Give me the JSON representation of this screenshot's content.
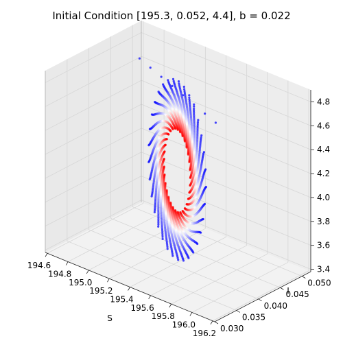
{
  "chart_data": {
    "type": "scatter",
    "projection": "3d",
    "title": "Initial Condition [195.3, 0.052, 4.4], b = 0.022",
    "xlabel": "S",
    "ylabel": "I",
    "zlabel": "",
    "xlim": [
      194.58,
      196.22
    ],
    "ylim": [
      0.03,
      0.052
    ],
    "zlim": [
      3.38,
      4.9
    ],
    "xticks": [
      "194.6",
      "194.8",
      "195.0",
      "195.2",
      "195.4",
      "195.6",
      "195.8",
      "196.0",
      "196.2"
    ],
    "yticks": [
      "0.030",
      "0.035",
      "0.040",
      "0.045",
      "0.050"
    ],
    "zticks": [
      "3.4",
      "3.6",
      "3.8",
      "4.0",
      "4.2",
      "4.4",
      "4.6",
      "4.8"
    ],
    "grid": true,
    "colormap": "bwr (early points blue, late points red)",
    "series": [
      {
        "description_points": "trajectory spiralling inward from an outer limit cycle (blue) to an inner cycle (red)",
        "outer_cycle": {
          "S_range": [
            194.7,
            196.05
          ],
          "I_range": [
            0.031,
            0.05
          ],
          "z_range": [
            3.4,
            4.9
          ]
        },
        "inner_cycle": {
          "S_range": [
            195.0,
            195.7
          ],
          "I_range": [
            0.036,
            0.046
          ],
          "z_range": [
            3.8,
            4.6
          ]
        },
        "initial_point": {
          "S": 195.3,
          "I": 0.052,
          "z": 4.4
        }
      }
    ],
    "colors": {
      "early": "#0000ff",
      "middle": "#ffffff",
      "late": "#ff0000"
    }
  }
}
